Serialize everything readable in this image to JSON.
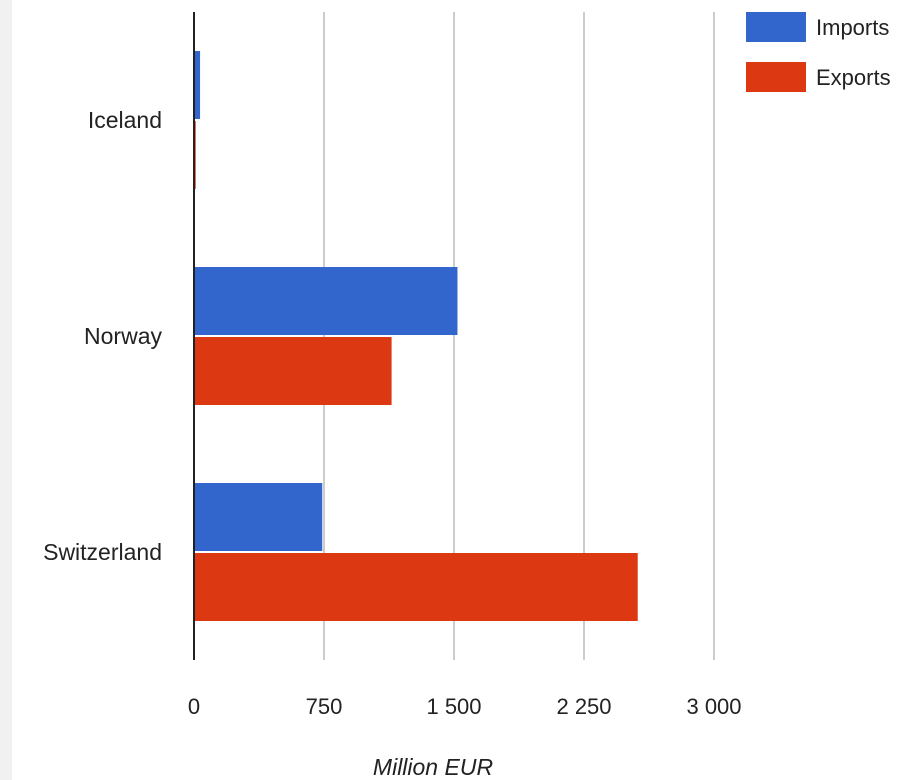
{
  "chart_data": {
    "type": "bar",
    "orientation": "horizontal",
    "categories": [
      "Iceland",
      "Norway",
      "Switzerland"
    ],
    "series": [
      {
        "name": "Imports",
        "color": "#3366cc",
        "values": [
          35,
          1520,
          740
        ]
      },
      {
        "name": "Exports",
        "color": "#dc3912",
        "values": [
          10,
          1140,
          2560
        ]
      }
    ],
    "title": "",
    "xlabel": "Million EUR",
    "ylabel": "",
    "xlim": [
      0,
      3250
    ],
    "xticks": [
      {
        "value": 0,
        "label": "0"
      },
      {
        "value": 750,
        "label": "750"
      },
      {
        "value": 1500,
        "label": "1 500"
      },
      {
        "value": 2250,
        "label": "2 250"
      },
      {
        "value": 3000,
        "label": "3 000"
      }
    ],
    "grid": true,
    "legend": "top-right"
  }
}
